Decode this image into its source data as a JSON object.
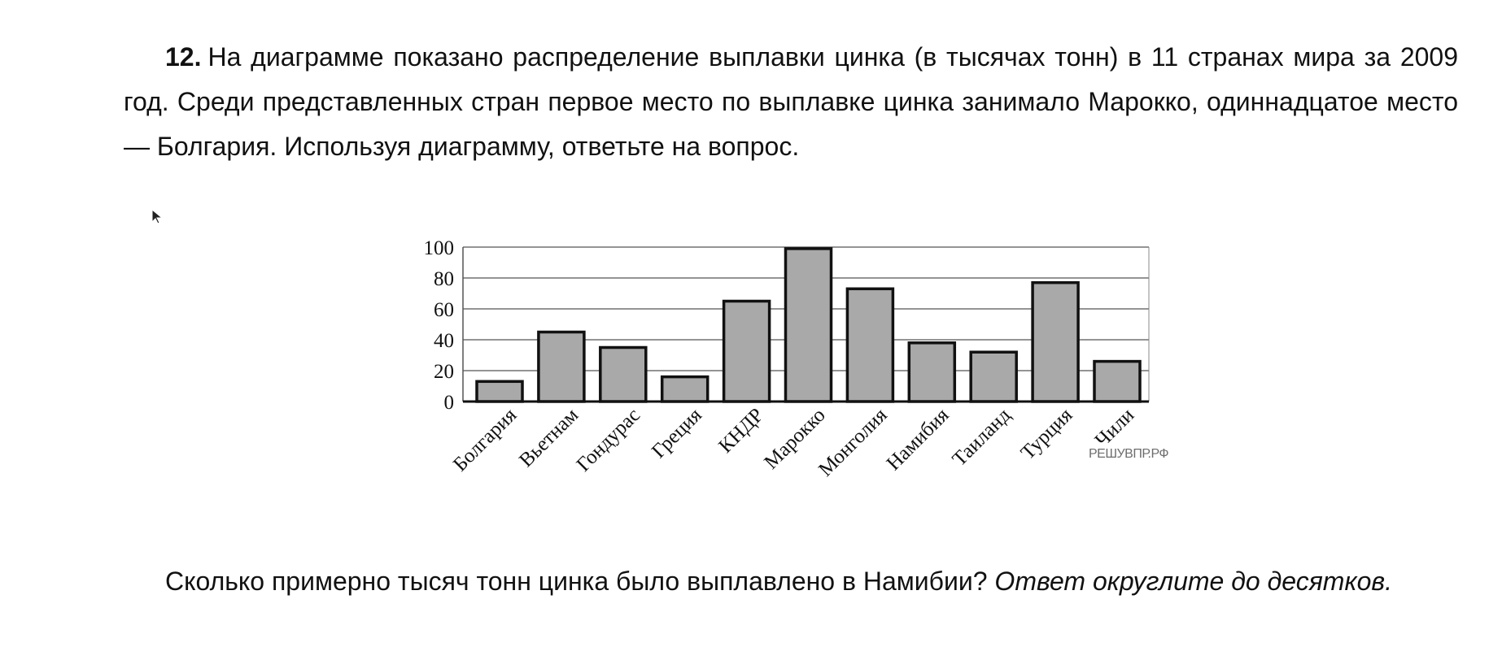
{
  "task": {
    "number": "12.",
    "intro": "На диаграмме показано распределение выплавки цинка (в тысячах тонн) в 11 странах мира за 2009 год. Среди представленных стран первое место по выплавке цинка занимало Марокко, одиннадцатое место — Болгария. Используя диаграмму, ответьте на вопрос.",
    "question": "Сколько примерно тысяч тонн цинка было выплавлено в Намибии?",
    "hint": "Ответ округлите до десятков."
  },
  "watermark": "РЕШУВПР.РФ",
  "chart_data": {
    "type": "bar",
    "categories": [
      "Болгария",
      "Вьетнам",
      "Гондурас",
      "Греция",
      "КНДР",
      "Марокко",
      "Монголия",
      "Намибия",
      "Таиланд",
      "Турция",
      "Чили"
    ],
    "values": [
      13,
      45,
      35,
      16,
      65,
      99,
      73,
      38,
      32,
      77,
      26
    ],
    "yticks": [
      0,
      20,
      40,
      60,
      80,
      100
    ],
    "ylim": [
      0,
      100
    ],
    "grid": true,
    "bar_color": "#a9a9a9",
    "edge_color": "#111111"
  }
}
